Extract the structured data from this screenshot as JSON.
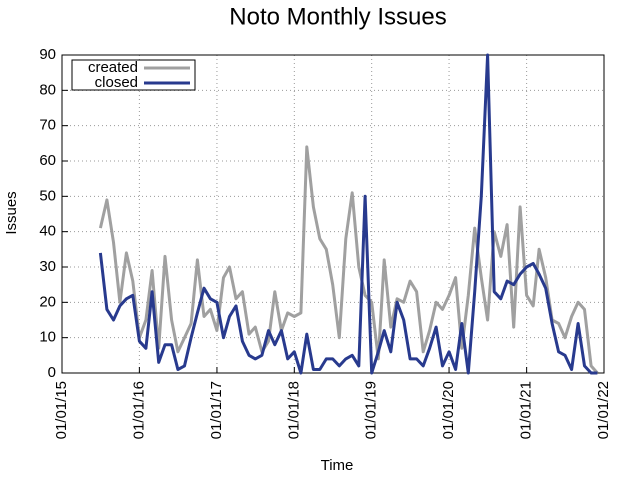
{
  "chart_data": {
    "type": "line",
    "title": "Noto Monthly Issues",
    "x_label": "Time",
    "y_label": "Issues",
    "grid": true,
    "legend": "top-left",
    "x": [
      "2015-07-01",
      "2015-08-01",
      "2015-09-01",
      "2015-10-01",
      "2015-11-01",
      "2015-12-01",
      "2016-01-01",
      "2016-02-01",
      "2016-03-01",
      "2016-04-01",
      "2016-05-01",
      "2016-06-01",
      "2016-07-01",
      "2016-08-01",
      "2016-09-01",
      "2016-10-01",
      "2016-11-01",
      "2016-12-01",
      "2017-01-01",
      "2017-02-01",
      "2017-03-01",
      "2017-04-01",
      "2017-05-01",
      "2017-06-01",
      "2017-07-01",
      "2017-08-01",
      "2017-09-01",
      "2017-10-01",
      "2017-11-01",
      "2017-12-01",
      "2018-01-01",
      "2018-02-01",
      "2018-03-01",
      "2018-04-01",
      "2018-05-01",
      "2018-06-01",
      "2018-07-01",
      "2018-08-01",
      "2018-09-01",
      "2018-10-01",
      "2018-11-01",
      "2018-12-01",
      "2019-01-01",
      "2019-02-01",
      "2019-03-01",
      "2019-04-01",
      "2019-05-01",
      "2019-06-01",
      "2019-07-01",
      "2019-08-01",
      "2019-09-01",
      "2019-10-01",
      "2019-11-01",
      "2019-12-01",
      "2020-01-01",
      "2020-02-01",
      "2020-03-01",
      "2020-04-01",
      "2020-05-01",
      "2020-06-01",
      "2020-07-01",
      "2020-08-01",
      "2020-09-01",
      "2020-10-01",
      "2020-11-01",
      "2020-12-01",
      "2021-01-01",
      "2021-02-01",
      "2021-03-01",
      "2021-04-01",
      "2021-05-01",
      "2021-06-01",
      "2021-07-01",
      "2021-08-01",
      "2021-09-01",
      "2021-10-01",
      "2021-11-01",
      "2021-12-01"
    ],
    "series": [
      {
        "name": "created",
        "color": "#a0a0a0",
        "values": [
          41,
          49,
          37,
          20,
          34,
          26,
          10,
          15,
          29,
          7,
          33,
          15,
          6,
          10,
          14,
          32,
          16,
          18,
          12,
          27,
          30,
          21,
          23,
          11,
          13,
          6,
          9,
          23,
          12,
          17,
          16,
          17,
          64,
          47,
          38,
          35,
          25,
          10,
          38,
          51,
          30,
          22,
          20,
          4,
          32,
          13,
          21,
          20,
          26,
          23,
          6,
          12,
          20,
          18,
          22,
          27,
          7,
          22,
          41,
          27,
          15,
          40,
          33,
          42,
          13,
          47,
          22,
          19,
          35,
          27,
          15,
          14,
          10,
          16,
          20,
          18,
          2,
          0
        ]
      },
      {
        "name": "closed",
        "color": "#283a8e",
        "values": [
          34,
          18,
          15,
          19,
          21,
          22,
          9,
          7,
          23,
          3,
          8,
          8,
          1,
          2,
          10,
          17,
          24,
          21,
          20,
          10,
          16,
          19,
          9,
          5,
          4,
          5,
          12,
          8,
          12,
          4,
          6,
          0,
          11,
          1,
          1,
          4,
          4,
          2,
          4,
          5,
          2,
          50,
          0,
          6,
          12,
          6,
          20,
          15,
          4,
          4,
          2,
          7,
          13,
          2,
          6,
          1,
          14,
          0,
          23,
          50,
          90,
          23,
          21,
          26,
          25,
          28,
          30,
          31,
          28,
          24,
          14,
          6,
          5,
          1,
          14,
          2,
          0,
          0
        ]
      }
    ],
    "xlim": [
      "2015-01-01",
      "2022-01-01"
    ],
    "xticks": [
      {
        "value": "2015-01-01",
        "label": "01/01/15"
      },
      {
        "value": "2016-01-01",
        "label": "01/01/16"
      },
      {
        "value": "2017-01-01",
        "label": "01/01/17"
      },
      {
        "value": "2018-01-01",
        "label": "01/01/18"
      },
      {
        "value": "2019-01-01",
        "label": "01/01/19"
      },
      {
        "value": "2020-01-01",
        "label": "01/01/20"
      },
      {
        "value": "2021-01-01",
        "label": "01/01/21"
      },
      {
        "value": "2022-01-01",
        "label": "01/01/22"
      }
    ],
    "ylim": [
      0,
      90
    ],
    "yticks": [
      0,
      10,
      20,
      30,
      40,
      50,
      60,
      70,
      80,
      90
    ]
  }
}
